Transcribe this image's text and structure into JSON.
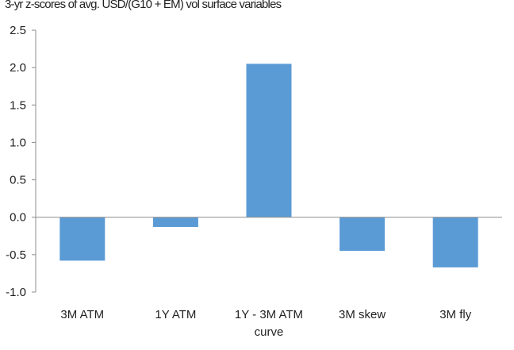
{
  "chart_data": {
    "type": "bar",
    "title": "3-yr z-scores of avg. USD/(G10 + EM) vol surface variables",
    "xlabel": "",
    "ylabel": "",
    "categories": [
      [
        "3M ATM"
      ],
      [
        "1Y ATM"
      ],
      [
        "1Y - 3M ATM",
        "curve"
      ],
      [
        "3M skew"
      ],
      [
        "3M fly"
      ]
    ],
    "values": [
      -0.58,
      -0.13,
      2.05,
      -0.45,
      -0.67
    ],
    "ylim": [
      -1.0,
      2.5
    ],
    "yticks": [
      "2.5",
      "2.0",
      "1.5",
      "1.0",
      "0.5",
      "0.0",
      "-0.5",
      "-1.0"
    ],
    "grid": false,
    "legend": "none",
    "bar_color": "#5b9bd5",
    "axis_color": "#8c8c8c"
  }
}
